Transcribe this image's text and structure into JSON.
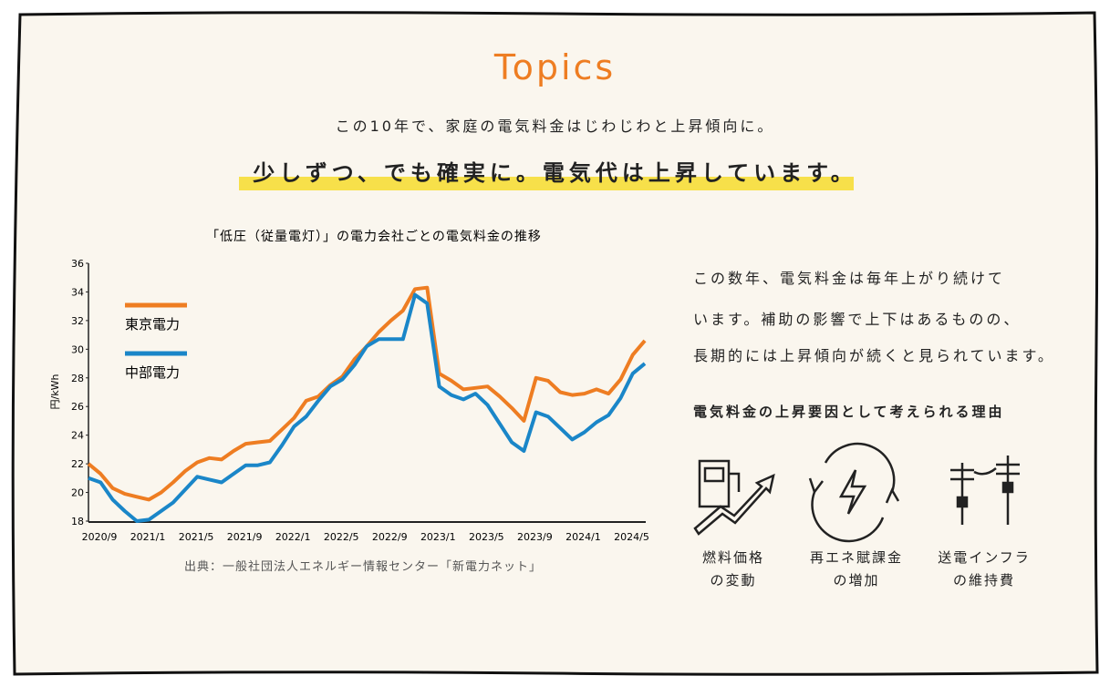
{
  "header": {
    "title": "Topics",
    "lead": "この10年で、家庭の電気料金はじわじわと上昇傾向に。",
    "headline": "少しずつ、でも確実に。電気代は上昇しています。"
  },
  "chart_data": {
    "type": "line",
    "title": "「低圧（従量電灯）」の電力会社ごとの電気料金の推移",
    "y_label": "円/kWh",
    "categories": [
      "2020/9",
      null,
      null,
      null,
      "2021/1",
      null,
      null,
      null,
      "2021/5",
      null,
      null,
      null,
      "2021/9",
      null,
      null,
      null,
      "2022/1",
      null,
      null,
      null,
      "2022/5",
      null,
      null,
      null,
      "2022/9",
      null,
      null,
      null,
      "2023/1",
      null,
      null,
      null,
      "2023/5",
      null,
      null,
      null,
      "2023/9",
      null,
      null,
      null,
      "2024/1",
      null,
      null,
      null,
      "2024/5",
      null,
      null
    ],
    "series": [
      {
        "name": "東京電力",
        "color": "#ee7d22",
        "values": [
          22.0,
          21.3,
          20.3,
          19.9,
          19.7,
          19.5,
          20.0,
          20.7,
          21.5,
          22.1,
          22.4,
          22.3,
          22.9,
          23.4,
          23.5,
          23.6,
          24.4,
          25.2,
          26.4,
          26.7,
          27.5,
          28.1,
          29.3,
          30.2,
          31.2,
          32.0,
          32.7,
          34.2,
          34.3,
          28.3,
          27.8,
          27.2,
          27.3,
          27.4,
          26.7,
          25.9,
          25.0,
          28.0,
          27.8,
          27.0,
          26.8,
          26.9,
          27.2,
          26.9,
          27.9,
          29.6,
          30.6
        ]
      },
      {
        "name": "中部電力",
        "color": "#1a86c8",
        "values": [
          21.0,
          20.7,
          19.5,
          18.7,
          18.0,
          18.1,
          18.7,
          19.3,
          20.2,
          21.1,
          20.9,
          20.7,
          21.3,
          21.9,
          21.9,
          22.1,
          23.3,
          24.6,
          25.3,
          26.4,
          27.4,
          27.9,
          28.9,
          30.2,
          30.7,
          30.7,
          30.7,
          33.8,
          33.2,
          27.4,
          26.8,
          26.5,
          26.9,
          26.1,
          24.8,
          23.5,
          22.9,
          25.6,
          25.3,
          24.5,
          23.7,
          24.2,
          24.9,
          25.4,
          26.6,
          28.3,
          29.0
        ]
      }
    ],
    "ylim": [
      18,
      36
    ],
    "yticks": [
      18,
      20,
      22,
      24,
      26,
      28,
      30,
      32,
      34,
      36
    ],
    "source": "出典：一般社団法人エネルギー情報センター「新電力ネット」"
  },
  "side": {
    "body": [
      "この数年、電気料金は毎年上がり続けて",
      "います。補助の影響で上下はあるものの、",
      "長期的には上昇傾向が続くと見られています。"
    ],
    "reasons_title": "電気料金の上昇要因として考えられる理由",
    "reasons": [
      [
        "燃料価格",
        "の変動"
      ],
      [
        "再エネ賦課金",
        "の増加"
      ],
      [
        "送電インフラ",
        "の維持費"
      ]
    ]
  }
}
